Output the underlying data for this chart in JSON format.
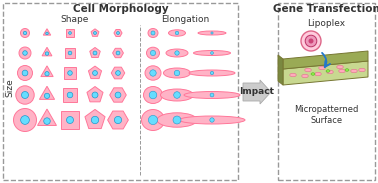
{
  "title_morphology": "Cell Morphology",
  "title_transfection": "Gene Transfection",
  "label_shape": "Shape",
  "label_elongation": "Elongation",
  "label_size": "Size",
  "label_impact": "Impact",
  "label_lipoplex": "Lipoplex",
  "label_surface": "Micropatterned\nSurface",
  "bg_color": "#ffffff",
  "box_edge_color": "#999999",
  "shape_fill": "#ffb3c6",
  "shape_edge": "#ff7799",
  "dot_fill": "#66ddff",
  "dot_edge": "#2299cc",
  "arrow_fill": "#cccccc",
  "arrow_edge": "#aaaaaa",
  "lipoplex_outer_fill": "#ffccdd",
  "lipoplex_outer_edge": "#dd6688",
  "lipoplex_mid_fill": "#ee99bb",
  "lipoplex_mid_edge": "#bb3366",
  "lipoplex_inner": "#cc4477",
  "surface_top": "#c8d890",
  "surface_front": "#9aaa55",
  "surface_left": "#7a8840",
  "surface_edge": "#777733",
  "cell_on_fill": "#ffaabb",
  "cell_on_edge": "#dd6688",
  "green_fill": "#88ee44",
  "green_edge": "#55aa22",
  "blue_arrow": "#2277cc",
  "text_color": "#333333"
}
